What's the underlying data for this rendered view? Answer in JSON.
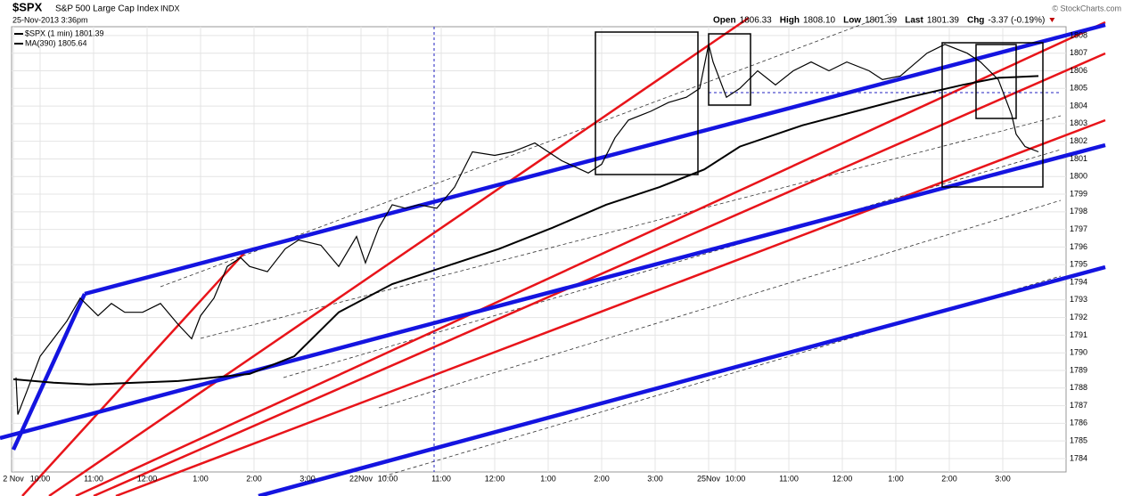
{
  "chart_data": {
    "type": "line",
    "title": "$SPX",
    "subtitle": "S&P 500 Large Cap Index",
    "exchange": "INDX",
    "date": "25-Nov-2013 3:36pm",
    "credit": "© StockCharts.com",
    "quote": [
      {
        "label": "Open",
        "value": "1806.33"
      },
      {
        "label": "High",
        "value": "1808.10"
      },
      {
        "label": "Low",
        "value": "1801.39"
      },
      {
        "label": "Last",
        "value": "1801.39"
      },
      {
        "label": "Chg",
        "value": "-3.37 (-0.19%)"
      }
    ],
    "series": [
      {
        "name": "$SPX (1 min) 1801.39",
        "color": "#000000",
        "x": [
          3,
          5,
          15,
          30,
          45,
          60,
          75,
          85,
          95,
          110,
          125,
          145,
          165,
          185,
          200,
          210,
          225,
          240,
          255,
          265,
          285,
          305,
          320,
          345,
          365,
          385,
          395,
          410,
          425,
          440,
          455,
          475,
          495,
          515,
          540,
          560,
          585,
          615,
          645,
          660,
          675,
          690,
          715,
          735,
          755,
          770,
          780,
          785,
          800,
          815,
          835,
          855,
          875,
          895,
          915,
          935,
          960,
          975,
          995,
          1025,
          1045,
          1070,
          1085,
          1105,
          1120,
          1125,
          1135,
          1150
        ],
        "values": [
          1788.6,
          1786.5,
          1787.8,
          1789.8,
          1790.8,
          1791.8,
          1793.1,
          1792.6,
          1792.1,
          1792.8,
          1792.3,
          1792.3,
          1792.8,
          1791.6,
          1790.8,
          1792.1,
          1793.1,
          1794.9,
          1795.4,
          1794.9,
          1794.6,
          1795.9,
          1796.4,
          1796.1,
          1794.9,
          1796.6,
          1795.1,
          1797.1,
          1798.4,
          1798.2,
          1798.4,
          1798.2,
          1799.4,
          1801.4,
          1801.2,
          1801.4,
          1801.9,
          1800.9,
          1800.2,
          1800.7,
          1802.2,
          1803.2,
          1803.7,
          1804.2,
          1804.5,
          1805.0,
          1807.5,
          1806.5,
          1804.5,
          1805.0,
          1806.0,
          1805.2,
          1806.0,
          1806.5,
          1806.0,
          1806.5,
          1806.0,
          1805.5,
          1805.7,
          1807.0,
          1807.5,
          1807.0,
          1806.5,
          1805.5,
          1803.5,
          1802.4,
          1801.7,
          1801.4
        ]
      },
      {
        "name": "MA(390) 1805.64",
        "color": "#000000",
        "x": [
          0,
          45,
          85,
          185,
          265,
          315,
          365,
          425,
          485,
          545,
          605,
          665,
          725,
          775,
          815,
          885,
          945,
          1005,
          1065,
          1105,
          1150
        ],
        "values": [
          1788.5,
          1788.3,
          1788.2,
          1788.4,
          1788.8,
          1789.8,
          1792.3,
          1793.9,
          1794.9,
          1795.9,
          1797.1,
          1798.4,
          1799.4,
          1800.4,
          1801.7,
          1802.9,
          1803.7,
          1804.5,
          1805.2,
          1805.6,
          1805.7
        ]
      }
    ],
    "xlim": [
      -2,
      1181
    ],
    "xticks": [
      {
        "value": 0,
        "label": "2 Nov"
      },
      {
        "value": 30,
        "label": "10:00"
      },
      {
        "value": 90,
        "label": "11:00"
      },
      {
        "value": 150,
        "label": "12:00"
      },
      {
        "value": 210,
        "label": "1:00"
      },
      {
        "value": 270,
        "label": "2:00"
      },
      {
        "value": 330,
        "label": "3:00"
      },
      {
        "value": 390,
        "label": "22Nov"
      },
      {
        "value": 420,
        "label": "10:00"
      },
      {
        "value": 480,
        "label": "11:00"
      },
      {
        "value": 540,
        "label": "12:00"
      },
      {
        "value": 600,
        "label": "1:00"
      },
      {
        "value": 660,
        "label": "2:00"
      },
      {
        "value": 720,
        "label": "3:00"
      },
      {
        "value": 780,
        "label": "25Nov"
      },
      {
        "value": 810,
        "label": "10:00"
      },
      {
        "value": 870,
        "label": "11:00"
      },
      {
        "value": 930,
        "label": "12:00"
      },
      {
        "value": 990,
        "label": "1:00"
      },
      {
        "value": 1050,
        "label": "2:00"
      },
      {
        "value": 1110,
        "label": "3:00"
      }
    ],
    "ylim": [
      1783.24,
      1808.5
    ],
    "yticks": [
      1784,
      1785,
      1786,
      1787,
      1788,
      1789,
      1790,
      1791,
      1792,
      1793,
      1794,
      1795,
      1796,
      1797,
      1798,
      1799,
      1800,
      1801,
      1802,
      1803,
      1804,
      1805,
      1806,
      1807,
      1808
    ],
    "grid": true
  }
}
